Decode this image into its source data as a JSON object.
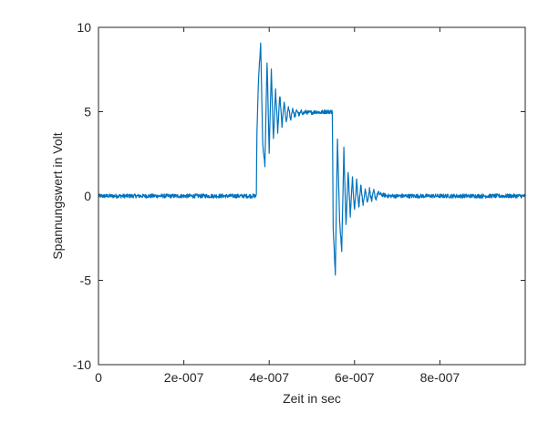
{
  "chart_data": {
    "type": "line",
    "title": "",
    "xlabel": "Zeit in sec",
    "ylabel": "Spannungswert in Volt",
    "xlim": [
      0,
      1e-06
    ],
    "ylim": [
      -10,
      10
    ],
    "grid": false,
    "legend": "none",
    "x_ticks": [
      0,
      2e-07,
      4e-07,
      6e-07,
      8e-07
    ],
    "x_tick_labels": [
      "0",
      "2e-007",
      "4e-007",
      "6e-007",
      "8e-007"
    ],
    "y_ticks": [
      -10,
      -5,
      0,
      5,
      10
    ],
    "y_tick_labels": [
      "-10",
      "-5",
      "0",
      "5",
      "10"
    ],
    "series": [
      {
        "color": "#0072BD",
        "noise_amplitude": 0.12,
        "x": [
          0,
          3.7e-07,
          3.71e-07,
          3.75e-07,
          3.8e-07,
          3.85e-07,
          3.9e-07,
          3.95e-07,
          4e-07,
          4.05e-07,
          4.1e-07,
          4.15e-07,
          4.2e-07,
          4.25e-07,
          4.3e-07,
          4.35e-07,
          4.4e-07,
          4.45e-07,
          4.5e-07,
          4.55e-07,
          4.6e-07,
          4.65e-07,
          4.7e-07,
          4.75e-07,
          4.8e-07,
          4.85e-07,
          4.9e-07,
          5e-07,
          5.1e-07,
          5.2e-07,
          5.3e-07,
          5.48e-07,
          5.5e-07,
          5.55e-07,
          5.6e-07,
          5.65e-07,
          5.7e-07,
          5.75e-07,
          5.8e-07,
          5.85e-07,
          5.9e-07,
          5.95e-07,
          6e-07,
          6.05e-07,
          6.1e-07,
          6.15e-07,
          6.2e-07,
          6.25e-07,
          6.3e-07,
          6.35e-07,
          6.4e-07,
          6.45e-07,
          6.5e-07,
          6.55e-07,
          6.6e-07,
          6.7e-07,
          6.8e-07,
          7e-07,
          1e-06
        ],
        "y": [
          0,
          0,
          3.5,
          7.0,
          9.0,
          3.0,
          1.8,
          8.0,
          2.6,
          7.5,
          3.3,
          6.3,
          3.8,
          6.0,
          4.1,
          5.6,
          4.3,
          5.3,
          4.5,
          5.2,
          4.7,
          5.1,
          4.8,
          5.0,
          4.9,
          5.0,
          4.95,
          4.95,
          5.0,
          4.95,
          5.0,
          5.0,
          -2.0,
          -4.6,
          3.5,
          -1.5,
          -3.2,
          2.8,
          -1.8,
          1.5,
          -1.2,
          1.1,
          -0.9,
          0.9,
          -0.7,
          0.7,
          -0.6,
          0.5,
          -0.4,
          0.4,
          -0.3,
          0.3,
          -0.2,
          0.2,
          0.1,
          0.05,
          0.0,
          0.0,
          0.0
        ]
      }
    ]
  }
}
